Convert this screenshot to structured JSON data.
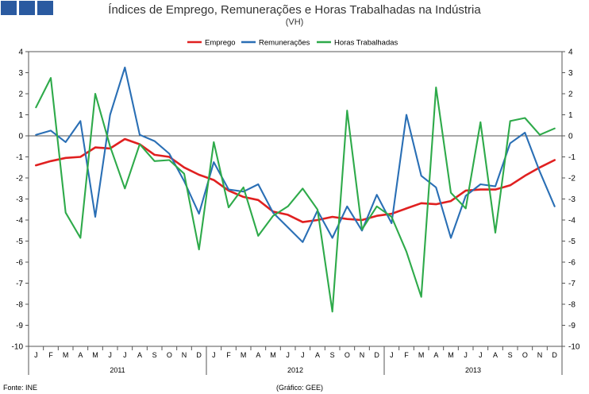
{
  "header": {
    "title": "Índices de Emprego, Remunerações e Horas Trabalhadas na Indústria",
    "subtitle": "(VH)"
  },
  "footer": {
    "source": "Fonte: INE",
    "credit": "(Gráfico: GEE)"
  },
  "chart_data": {
    "type": "line",
    "title": "Índices de Emprego, Remunerações e Horas Trabalhadas na Indústria",
    "subtitle": "(VH)",
    "ylim": [
      -10,
      4
    ],
    "yticks": [
      4,
      3,
      2,
      1,
      0,
      -1,
      -2,
      -3,
      -4,
      -5,
      -6,
      -7,
      -8,
      -9,
      -10
    ],
    "y_axis_sides": "left-and-right",
    "grid": false,
    "legend_position": "top-center",
    "categories": [
      "J",
      "F",
      "M",
      "A",
      "M",
      "J",
      "J",
      "A",
      "S",
      "O",
      "N",
      "D",
      "J",
      "F",
      "M",
      "A",
      "M",
      "J",
      "J",
      "A",
      "S",
      "O",
      "N",
      "D",
      "J",
      "F",
      "M",
      "A",
      "M",
      "J",
      "J",
      "A",
      "S",
      "O",
      "N",
      "D"
    ],
    "years": [
      "2011",
      "2012",
      "2013"
    ],
    "series": [
      {
        "name": "Emprego",
        "color": "#e02020",
        "values": [
          -1.4,
          -1.2,
          -1.05,
          -1.0,
          -0.55,
          -0.6,
          -0.15,
          -0.4,
          -0.9,
          -1.0,
          -1.5,
          -1.85,
          -2.1,
          -2.6,
          -2.9,
          -3.05,
          -3.6,
          -3.75,
          -4.1,
          -4.0,
          -3.85,
          -3.95,
          -4.0,
          -3.8,
          -3.7,
          -3.45,
          -3.2,
          -3.25,
          -3.1,
          -2.6,
          -2.55,
          -2.55,
          -2.35,
          -1.9,
          -1.5,
          -1.15
        ]
      },
      {
        "name": "Remunerações",
        "color": "#2a6fb5",
        "values": [
          0.05,
          0.25,
          -0.3,
          0.7,
          -3.85,
          1.0,
          3.25,
          0.05,
          -0.25,
          -0.85,
          -2.15,
          -3.7,
          -1.25,
          -2.55,
          -2.65,
          -2.3,
          -3.65,
          -4.35,
          -5.05,
          -3.55,
          -4.85,
          -3.35,
          -4.5,
          -2.8,
          -4.15,
          1.0,
          -1.9,
          -2.45,
          -4.85,
          -2.85,
          -2.3,
          -2.4,
          -0.35,
          0.15,
          -1.7,
          -3.35
        ]
      },
      {
        "name": "Horas Trabalhadas",
        "color": "#2eaa4a",
        "values": [
          1.35,
          2.75,
          -3.65,
          -4.85,
          2.0,
          -0.5,
          -2.5,
          -0.4,
          -1.2,
          -1.15,
          -1.8,
          -5.4,
          -0.3,
          -3.4,
          -2.45,
          -4.75,
          -3.8,
          -3.35,
          -2.5,
          -3.5,
          -8.35,
          1.2,
          -4.45,
          -3.35,
          -3.85,
          -5.5,
          -7.65,
          2.3,
          -2.7,
          -3.45,
          0.65,
          -4.6,
          0.7,
          0.85,
          0.05,
          0.35
        ]
      }
    ]
  }
}
